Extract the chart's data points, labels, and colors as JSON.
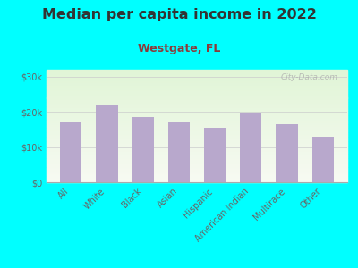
{
  "title": "Median per capita income in 2022",
  "subtitle": "Westgate, FL",
  "categories": [
    "All",
    "White",
    "Black",
    "Asian",
    "Hispanic",
    "American Indian",
    "Multirace",
    "Other"
  ],
  "values": [
    17000,
    22000,
    18500,
    17000,
    15500,
    19500,
    16500,
    13000
  ],
  "bar_color": "#b8a8cc",
  "background_outer": "#00FFFF",
  "title_color": "#333333",
  "subtitle_color": "#8b3a3a",
  "axis_label_color": "#666666",
  "ylim": [
    0,
    32000
  ],
  "yticks": [
    0,
    10000,
    20000,
    30000
  ],
  "ytick_labels": [
    "$0",
    "$10k",
    "$20k",
    "$30k"
  ],
  "watermark": "City-Data.com",
  "title_fontsize": 11.5,
  "subtitle_fontsize": 9,
  "tick_fontsize": 7
}
